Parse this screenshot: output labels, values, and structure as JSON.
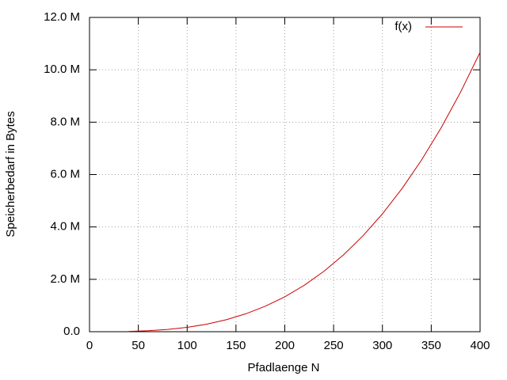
{
  "chart_data": {
    "type": "line",
    "xlabel": "Pfadlaenge N",
    "ylabel": "Speicherbedarf in Bytes",
    "x": [
      40,
      60,
      80,
      100,
      120,
      140,
      160,
      180,
      200,
      220,
      240,
      260,
      280,
      300,
      320,
      340,
      360,
      380,
      400
    ],
    "series": [
      {
        "name": "f(x)",
        "color": "#cc0000",
        "values": [
          10667,
          36000,
          85333,
          166667,
          288000,
          457333,
          682667,
          972000,
          1333333,
          1774667,
          2304000,
          2929333,
          3658667,
          4500000,
          5461333,
          6550667,
          7776000,
          9145333,
          10666667
        ]
      }
    ],
    "xlim": [
      0,
      400
    ],
    "xticks": [
      0,
      50,
      100,
      150,
      200,
      250,
      300,
      350,
      400
    ],
    "ylim": [
      0,
      12000000
    ],
    "yticks": [
      {
        "value": 0,
        "label": "0.0"
      },
      {
        "value": 2000000,
        "label": "2.0 M"
      },
      {
        "value": 4000000,
        "label": "4.0 M"
      },
      {
        "value": 6000000,
        "label": "6.0 M"
      },
      {
        "value": 8000000,
        "label": "8.0 M"
      },
      {
        "value": 10000000,
        "label": "10.0 M"
      },
      {
        "value": 12000000,
        "label": "12.0 M"
      }
    ],
    "grid": true,
    "legend": "top-right"
  }
}
